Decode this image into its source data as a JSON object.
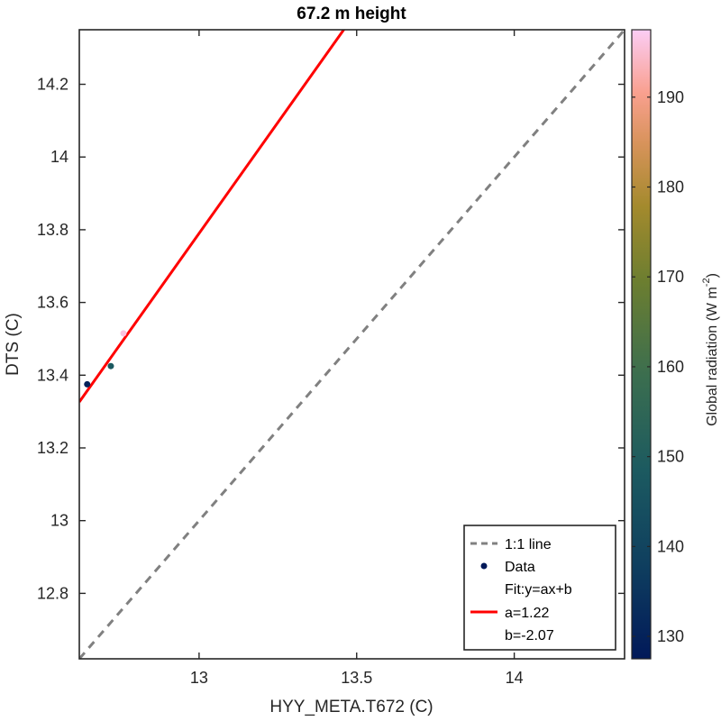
{
  "chart_data": {
    "type": "scatter",
    "title": "67.2 m height",
    "xlabel": "HYY_META.T672 (C)",
    "ylabel": "DTS (C)",
    "xlim": [
      12.62,
      14.35
    ],
    "ylim": [
      12.62,
      14.35
    ],
    "xticks": [
      "13",
      "13.5",
      "14"
    ],
    "xtick_values": [
      13,
      13.5,
      14
    ],
    "yticks": [
      "12.8",
      "13",
      "13.2",
      "13.4",
      "13.6",
      "13.8",
      "14",
      "14.2"
    ],
    "ytick_values": [
      12.8,
      13.0,
      13.2,
      13.4,
      13.6,
      13.8,
      14.0,
      14.2
    ],
    "grid": false,
    "series": [
      {
        "name": "Data",
        "points": [
          {
            "x": 12.645,
            "y": 13.375,
            "radiation": 130
          },
          {
            "x": 12.72,
            "y": 13.425,
            "radiation": 148
          },
          {
            "x": 12.76,
            "y": 13.515,
            "radiation": 196
          }
        ]
      }
    ],
    "reference_line": {
      "name": "1:1 line",
      "color": "#808080"
    },
    "fit": {
      "name": "Fit:y=ax+b",
      "a": 1.22,
      "b": -2.07,
      "a_label": "a=1.22",
      "b_label": "b=-2.07",
      "color": "#ff0000"
    },
    "colorbar": {
      "label_main": "Global radiation (W m",
      "label_sup": "-2",
      "label_close": ")",
      "range": [
        127.5,
        197.5
      ],
      "ticks": [
        "130",
        "140",
        "150",
        "160",
        "170",
        "180",
        "190"
      ],
      "tick_values": [
        130,
        140,
        150,
        160,
        170,
        180,
        190
      ],
      "colormap": "batlow"
    },
    "legend": {
      "position": "bottom-right",
      "entries": [
        "1:1 line",
        "Data",
        "Fit:y=ax+b",
        "a=1.22",
        "b=-2.07"
      ]
    }
  }
}
